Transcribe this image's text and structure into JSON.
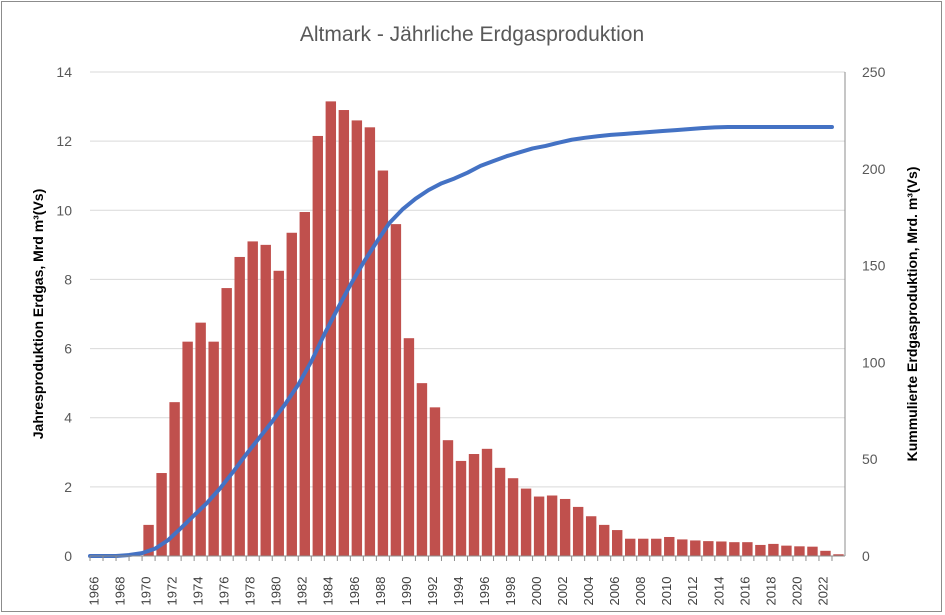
{
  "chart_data": {
    "type": "bar",
    "title": "Altmark - Jährliche Erdgasproduktion",
    "ylabel": "Jahresproduktion  Erdgas, Mrd m³(Vs)",
    "y2label": "Kummulierte Erdgasproduktion,  Mrd. m³(Vs)",
    "ylim": [
      0,
      14
    ],
    "y2lim": [
      0,
      250
    ],
    "yticks": [
      "0",
      "2",
      "4",
      "6",
      "8",
      "10",
      "12",
      "14"
    ],
    "y2ticks": [
      "0",
      "50",
      "100",
      "150",
      "200",
      "250"
    ],
    "grid": true,
    "bar_color": "#c0504d",
    "line_color": "#4472c4",
    "x": [
      1966,
      1967,
      1968,
      1969,
      1970,
      1971,
      1972,
      1973,
      1974,
      1975,
      1976,
      1977,
      1978,
      1979,
      1980,
      1981,
      1982,
      1983,
      1984,
      1985,
      1986,
      1987,
      1988,
      1989,
      1990,
      1991,
      1992,
      1993,
      1994,
      1995,
      1996,
      1997,
      1998,
      1999,
      2000,
      2001,
      2002,
      2003,
      2004,
      2005,
      2006,
      2007,
      2008,
      2009,
      2010,
      2011,
      2012,
      2013,
      2014,
      2015,
      2016,
      2017,
      2018,
      2019,
      2020,
      2021,
      2022,
      2023
    ],
    "xtick_labels": [
      "1966",
      "1968",
      "1970",
      "1972",
      "1974",
      "1976",
      "1978",
      "1980",
      "1982",
      "1984",
      "1986",
      "1988",
      "1990",
      "1992",
      "1994",
      "1996",
      "1998",
      "2000",
      "2002",
      "2004",
      "2006",
      "2008",
      "2010",
      "2012",
      "2014",
      "2016",
      "2018",
      "2020",
      "2022"
    ],
    "series": [
      {
        "axis": "left",
        "kind": "bar",
        "values": [
          0,
          0,
          0,
          0,
          0.9,
          2.4,
          4.45,
          6.2,
          6.75,
          6.2,
          7.75,
          8.65,
          9.1,
          9.0,
          8.25,
          9.35,
          9.95,
          12.15,
          13.15,
          12.9,
          12.6,
          12.4,
          11.15,
          9.6,
          6.3,
          5.0,
          4.3,
          3.35,
          2.75,
          2.95,
          3.1,
          2.55,
          2.25,
          1.95,
          1.72,
          1.75,
          1.65,
          1.42,
          1.15,
          0.9,
          0.75,
          0.5,
          0.5,
          0.5,
          0.55,
          0.48,
          0.45,
          0.43,
          0.42,
          0.4,
          0.4,
          0.32,
          0.35,
          0.3,
          0.28,
          0.27,
          0.15,
          0.05
        ]
      },
      {
        "axis": "right",
        "kind": "line",
        "values": [
          0,
          0,
          0,
          0.5,
          1.5,
          3.8,
          8.2,
          14.5,
          21.0,
          27.5,
          35.0,
          43.5,
          52.5,
          61.0,
          69.5,
          78.5,
          88.5,
          100.5,
          114.5,
          127.5,
          140.0,
          151.5,
          162.0,
          172.0,
          179.0,
          184.5,
          189.0,
          192.5,
          195.0,
          198.0,
          201.5,
          204.0,
          206.5,
          208.5,
          210.5,
          211.8,
          213.5,
          215.0,
          216.0,
          216.8,
          217.5,
          218.0,
          218.5,
          219.0,
          219.5,
          220.0,
          220.5,
          221.0,
          221.4,
          221.6,
          221.6,
          221.6,
          221.6,
          221.6,
          221.6,
          221.6,
          221.6,
          221.6
        ]
      }
    ]
  }
}
